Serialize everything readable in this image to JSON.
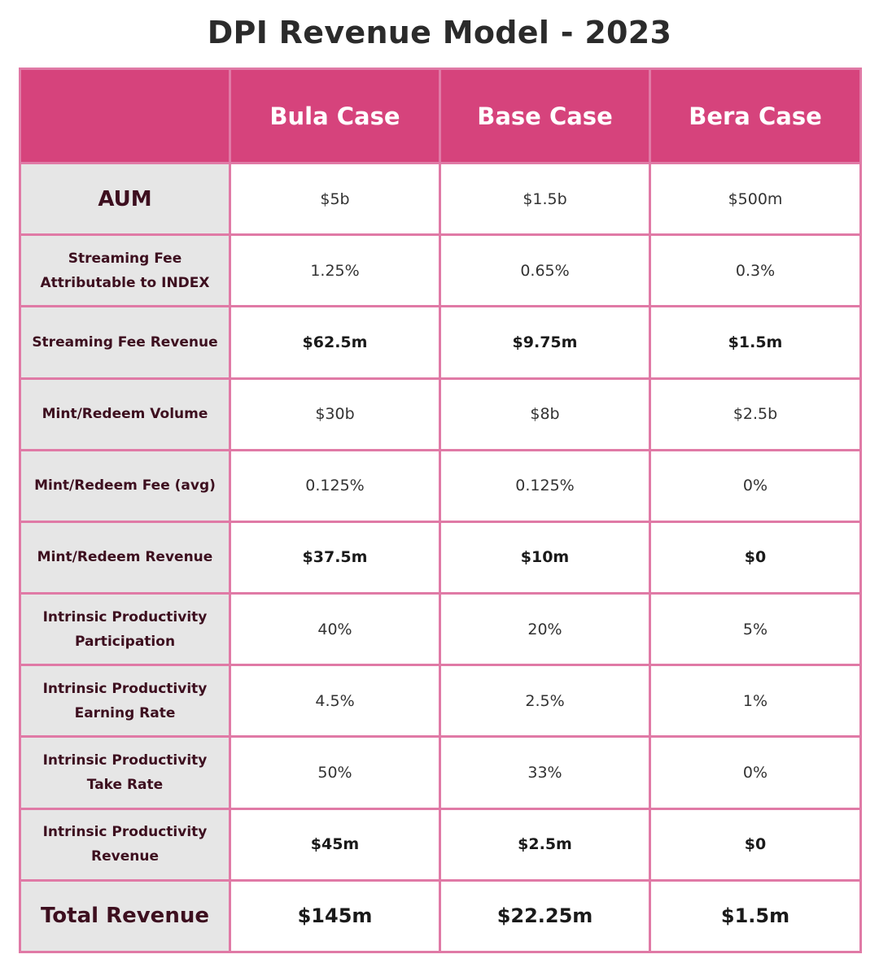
{
  "chart_data": {
    "type": "table",
    "title": "DPI Revenue Model - 2023",
    "columns": [
      "",
      "Bula Case",
      "Base Case",
      "Bera Case"
    ],
    "rows": [
      {
        "label": "AUM",
        "values": [
          "$5b",
          "$1.5b",
          "$500m"
        ],
        "bold": false
      },
      {
        "label": "Streaming Fee\nAttributable to INDEX",
        "values": [
          "1.25%",
          "0.65%",
          "0.3%"
        ],
        "bold": false
      },
      {
        "label": "Streaming Fee Revenue",
        "values": [
          "$62.5m",
          "$9.75m",
          "$1.5m"
        ],
        "bold": true
      },
      {
        "label": "Mint/Redeem Volume",
        "values": [
          "$30b",
          "$8b",
          "$2.5b"
        ],
        "bold": false
      },
      {
        "label": "Mint/Redeem Fee (avg)",
        "values": [
          "0.125%",
          "0.125%",
          "0%"
        ],
        "bold": false
      },
      {
        "label": "Mint/Redeem Revenue",
        "values": [
          "$37.5m",
          "$10m",
          "$0"
        ],
        "bold": true
      },
      {
        "label": "Intrinsic Productivity\nParticipation",
        "values": [
          "40%",
          "20%",
          "5%"
        ],
        "bold": false
      },
      {
        "label": "Intrinsic Productivity\nEarning Rate",
        "values": [
          "4.5%",
          "2.5%",
          "1%"
        ],
        "bold": false
      },
      {
        "label": "Intrinsic Productivity\nTake Rate",
        "values": [
          "50%",
          "33%",
          "0%"
        ],
        "bold": false
      },
      {
        "label": "Intrinsic Productivity\nRevenue",
        "values": [
          "$45m",
          "$2.5m",
          "$0"
        ],
        "bold": true
      },
      {
        "label": "Total Revenue",
        "values": [
          "$145m",
          "$22.25m",
          "$1.5m"
        ],
        "bold": true
      }
    ]
  },
  "colors": {
    "header_bg": "#d6437c",
    "header_text": "#ffffff",
    "border": "#e07aa6",
    "label_bg": "#e6e6e6",
    "label_text": "#3d0f1f"
  }
}
